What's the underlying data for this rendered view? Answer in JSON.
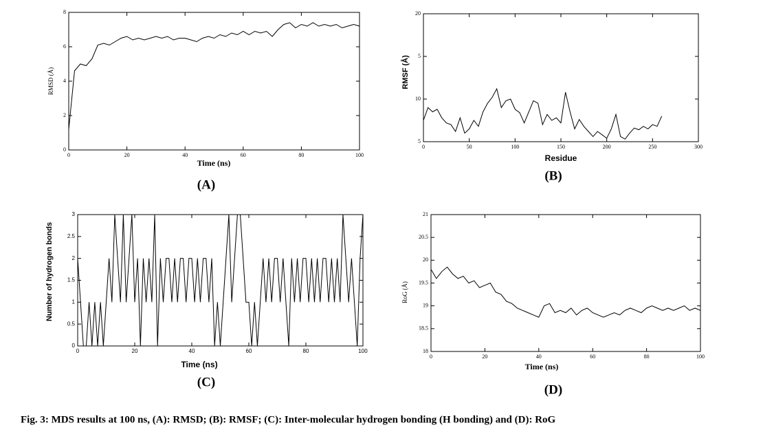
{
  "chart_data": [
    {
      "type": "line",
      "panel_label": "(A)",
      "x_label": "Time (ns)",
      "y_label": "RMSD (Å)",
      "color": "#000000",
      "xlim": [
        0,
        100
      ],
      "xticks": [
        0,
        20,
        40,
        60,
        80,
        100
      ],
      "ylim": [
        0,
        8
      ],
      "yticks": [
        0,
        2,
        4,
        6,
        8
      ],
      "x": [
        0,
        2,
        4,
        6,
        8,
        10,
        12,
        14,
        16,
        18,
        20,
        22,
        24,
        26,
        28,
        30,
        32,
        34,
        36,
        38,
        40,
        42,
        44,
        46,
        48,
        50,
        52,
        54,
        56,
        58,
        60,
        62,
        64,
        66,
        68,
        70,
        72,
        74,
        76,
        78,
        80,
        82,
        84,
        86,
        88,
        90,
        92,
        94,
        96,
        98,
        100
      ],
      "values": [
        1.2,
        4.6,
        5.0,
        4.9,
        5.3,
        6.1,
        6.2,
        6.1,
        6.3,
        6.5,
        6.6,
        6.4,
        6.5,
        6.4,
        6.5,
        6.6,
        6.5,
        6.6,
        6.4,
        6.5,
        6.5,
        6.4,
        6.3,
        6.5,
        6.6,
        6.5,
        6.7,
        6.6,
        6.8,
        6.7,
        6.9,
        6.7,
        6.9,
        6.8,
        6.9,
        6.6,
        7.0,
        7.3,
        7.4,
        7.1,
        7.3,
        7.2,
        7.4,
        7.2,
        7.3,
        7.2,
        7.3,
        7.1,
        7.2,
        7.3,
        7.2
      ]
    },
    {
      "type": "line",
      "panel_label": "(B)",
      "x_label": "Residue",
      "y_label": "RMSF (Å)",
      "color": "#000000",
      "xlim": [
        0,
        300
      ],
      "xticks": [
        0,
        50,
        100,
        150,
        200,
        250,
        300
      ],
      "ylim": [
        5,
        20
      ],
      "yticks": [
        5,
        10,
        {
          "value": 15,
          "label": "5"
        },
        20
      ],
      "x": [
        0,
        5,
        10,
        15,
        20,
        25,
        30,
        35,
        40,
        45,
        50,
        55,
        60,
        65,
        70,
        75,
        80,
        85,
        90,
        95,
        100,
        105,
        110,
        115,
        120,
        125,
        130,
        135,
        140,
        145,
        150,
        155,
        160,
        165,
        170,
        175,
        180,
        185,
        190,
        195,
        200,
        205,
        210,
        215,
        220,
        225,
        230,
        235,
        240,
        245,
        250,
        255,
        260
      ],
      "values": [
        7.5,
        9,
        8.5,
        8.8,
        7.8,
        7.2,
        7.0,
        6.2,
        7.8,
        6.0,
        6.5,
        7.5,
        6.8,
        8.5,
        9.5,
        10.2,
        11.2,
        9.0,
        9.8,
        10.0,
        8.8,
        8.4,
        7.2,
        8.5,
        9.8,
        9.5,
        7.0,
        8.2,
        7.5,
        7.8,
        7.2,
        10.8,
        8.5,
        6.5,
        7.6,
        6.8,
        6.2,
        5.6,
        6.2,
        5.8,
        5.4,
        6.5,
        8.2,
        5.6,
        5.3,
        6.0,
        6.6,
        6.4,
        6.8,
        6.5,
        7.0,
        6.8,
        8.0
      ]
    },
    {
      "type": "line",
      "panel_label": "(C)",
      "x_label": "Time (ns)",
      "y_label": "Number of hydrogen bonds",
      "color": "#000000",
      "xlim": [
        0,
        100
      ],
      "xticks": [
        0,
        20,
        40,
        60,
        80,
        100
      ],
      "ylim": [
        0,
        3
      ],
      "yticks": [
        0,
        0.5,
        1,
        1.5,
        2,
        2.5,
        3
      ],
      "x": [
        0,
        1,
        2,
        3,
        4,
        5,
        6,
        7,
        8,
        9,
        10,
        11,
        12,
        13,
        14,
        15,
        16,
        17,
        18,
        19,
        20,
        21,
        22,
        23,
        24,
        25,
        26,
        27,
        28,
        29,
        30,
        31,
        32,
        33,
        34,
        35,
        36,
        37,
        38,
        39,
        40,
        41,
        42,
        43,
        44,
        45,
        46,
        47,
        48,
        49,
        50,
        51,
        52,
        53,
        54,
        55,
        56,
        57,
        58,
        59,
        60,
        61,
        62,
        63,
        64,
        65,
        66,
        67,
        68,
        69,
        70,
        71,
        72,
        73,
        74,
        75,
        76,
        77,
        78,
        79,
        80,
        81,
        82,
        83,
        84,
        85,
        86,
        87,
        88,
        89,
        90,
        91,
        92,
        93,
        94,
        95,
        96,
        97,
        98,
        99,
        100
      ],
      "values": [
        2,
        1,
        0,
        0,
        1,
        0,
        1,
        0,
        1,
        0,
        1,
        2,
        1,
        3,
        2,
        1,
        3,
        1,
        2,
        3,
        1,
        2,
        0,
        2,
        1,
        2,
        1,
        3,
        0,
        2,
        1,
        2,
        2,
        1,
        2,
        1,
        2,
        2,
        1,
        2,
        2,
        1,
        2,
        1,
        2,
        2,
        1,
        2,
        0,
        1,
        0,
        1,
        2,
        3,
        1,
        2,
        3,
        3,
        2,
        1,
        1,
        0,
        1,
        0,
        1,
        2,
        1,
        2,
        1,
        2,
        2,
        1,
        2,
        1,
        0,
        2,
        1,
        2,
        1,
        2,
        2,
        1,
        2,
        1,
        2,
        1,
        2,
        2,
        1,
        2,
        1,
        2,
        1,
        3,
        2,
        1,
        2,
        1,
        0,
        2,
        3
      ]
    },
    {
      "type": "line",
      "panel_label": "(D)",
      "x_label": "Time (ns)",
      "y_label": "RoG (Å)",
      "color": "#000000",
      "xlim": [
        0,
        100
      ],
      "xticks": [
        0,
        20,
        40,
        60,
        80,
        100
      ],
      "ylim": [
        18,
        21
      ],
      "yticks": [
        18,
        18.5,
        19,
        19.5,
        20,
        20.5,
        21
      ],
      "x": [
        0,
        2,
        4,
        6,
        8,
        10,
        12,
        14,
        16,
        18,
        20,
        22,
        24,
        26,
        28,
        30,
        32,
        34,
        36,
        38,
        40,
        42,
        44,
        46,
        48,
        50,
        52,
        54,
        56,
        58,
        60,
        62,
        64,
        66,
        68,
        70,
        72,
        74,
        76,
        78,
        80,
        82,
        84,
        86,
        88,
        90,
        92,
        94,
        96,
        98,
        100
      ],
      "values": [
        19.8,
        19.6,
        19.75,
        19.85,
        19.7,
        19.6,
        19.65,
        19.5,
        19.55,
        19.4,
        19.45,
        19.5,
        19.3,
        19.25,
        19.1,
        19.05,
        18.95,
        18.9,
        18.85,
        18.8,
        18.75,
        19.0,
        19.05,
        18.85,
        18.9,
        18.85,
        18.95,
        18.8,
        18.9,
        18.95,
        18.85,
        18.8,
        18.75,
        18.8,
        18.85,
        18.8,
        18.9,
        18.95,
        18.9,
        18.85,
        18.95,
        19.0,
        18.95,
        18.9,
        18.95,
        18.9,
        18.95,
        19.0,
        18.9,
        18.95,
        18.9
      ]
    }
  ],
  "caption": "Fig. 3: MDS results at 100 ns, (A): RMSD; (B): RMSF; (C): Inter-molecular hydrogen bonding (H bonding) and (D): RoG"
}
